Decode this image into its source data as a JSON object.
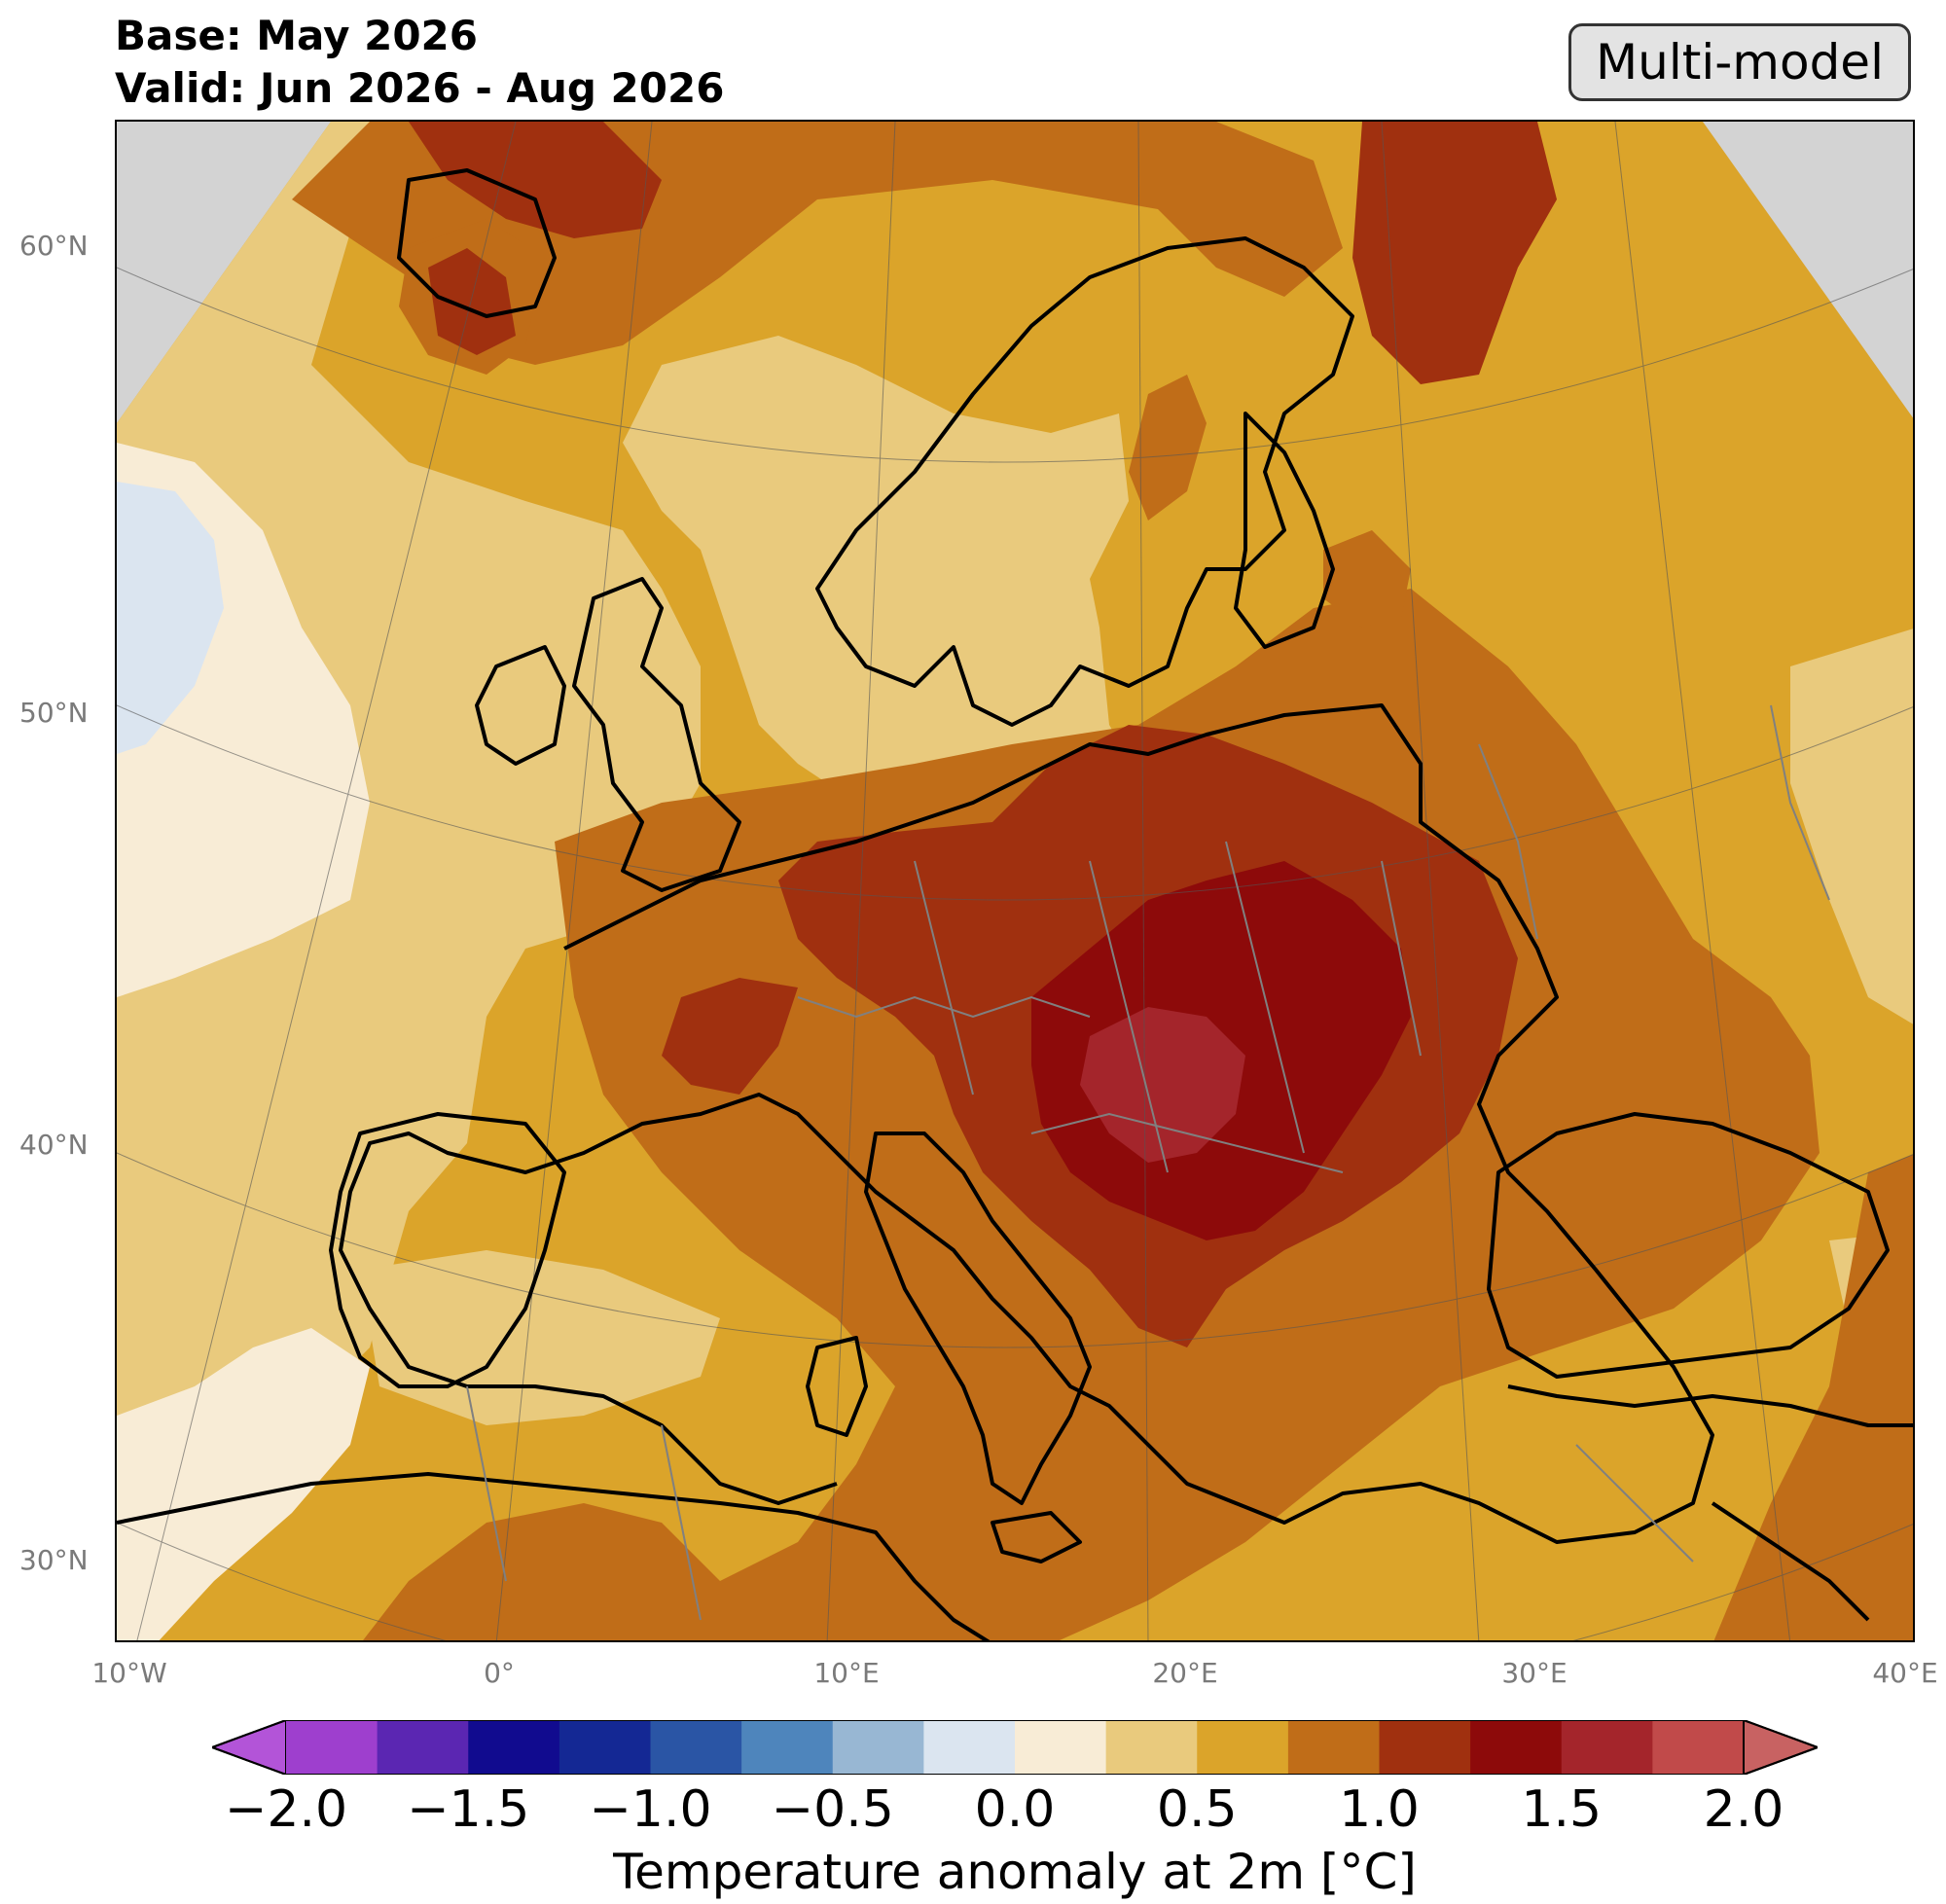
{
  "header": {
    "base": "Base: May 2026",
    "valid": "Valid: Jun 2026 - Aug 2026"
  },
  "badge": "Multi-model",
  "map": {
    "region": "Europe",
    "projection": "conic",
    "land_outline_color": "#000000",
    "border_color": "#808080",
    "outside_domain_color": "#d3d3d3",
    "lat_labels": [
      "60°N",
      "50°N",
      "40°N",
      "30°N"
    ],
    "lon_labels": [
      "10°W",
      "0°",
      "10°E",
      "20°E",
      "30°E",
      "40°E"
    ],
    "anomaly_summary": {
      "max_region": "Hungary / Balkans",
      "max_value": 2.0,
      "min_region": "Atlantic west of Ireland",
      "min_value": -0.25
    }
  },
  "colorbar": {
    "title": "Temperature anomaly at 2m [°C]",
    "ticks": [
      "−2.0",
      "−1.5",
      "−1.0",
      "−0.5",
      "0.0",
      "0.5",
      "1.0",
      "1.5",
      "2.0"
    ],
    "extend": "both",
    "colors": [
      "#b354d8",
      "#9e3fce",
      "#5b26b2",
      "#110b8f",
      "#142894",
      "#2a55a5",
      "#4e85bc",
      "#98b7d3",
      "#dbe5f0",
      "#f8ecd6",
      "#e9ca7d",
      "#dba42a",
      "#c06d18",
      "#a0300f",
      "#8d0a0a",
      "#a4252b",
      "#c14a4a",
      "#c86262"
    ]
  }
}
